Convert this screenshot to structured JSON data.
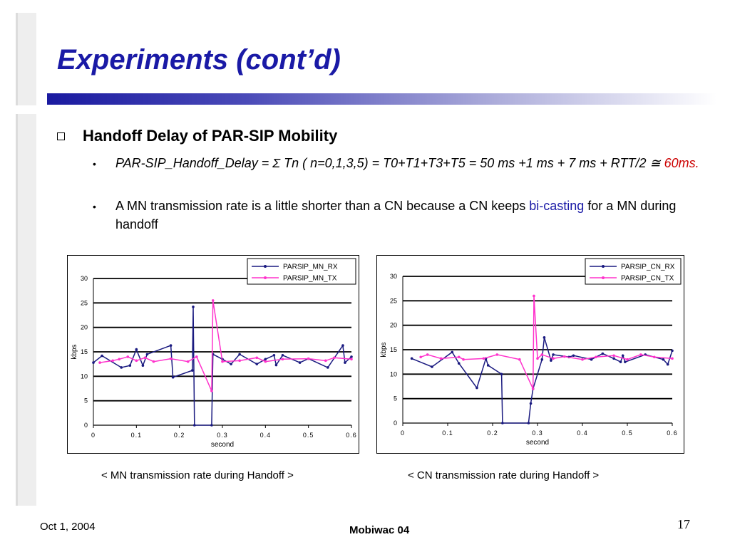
{
  "slide": {
    "title": "Experiments (cont’d)",
    "heading": "Handoff Delay of PAR-SIP Mobility",
    "bullet1": {
      "part1": "PAR-SIP_Handoff_Delay = ",
      "sigma": "Σ",
      "part2": " Tn ( n=0,1,3,5) = T0+T1+T3+T5 = 50 ms +1 ms + 7 ms + RTT/2 ",
      "approx": "≅",
      "red_value": "60ms."
    },
    "bullet2": {
      "part1": "A MN transmission rate is a little shorter than a CN because a CN keeps ",
      "blue_text": "bi-casting",
      "part2": " for a MN during handoff"
    },
    "caption_mn": "< MN transmission rate during Handoff >",
    "caption_cn": "< CN transmission rate during Handoff >",
    "footer_date": "Oct 1, 2004",
    "footer_center": "Mobiwac 04",
    "page_number": "17"
  },
  "colors": {
    "title": "#1a1aa6",
    "rx_series": "#1a1a80",
    "tx_series": "#ff33cc",
    "highlight_red": "#cc0000"
  },
  "chart_data": [
    {
      "type": "line",
      "xlabel": "second",
      "ylabel": "kbps",
      "xlim": [
        0,
        0.6
      ],
      "ylim": [
        0,
        30
      ],
      "x_ticks": [
        "0",
        "0.1",
        "0.2",
        "0.3",
        "0.4",
        "0.5",
        "0.6"
      ],
      "y_ticks": [
        "0",
        "5",
        "10",
        "15",
        "20",
        "25",
        "30"
      ],
      "grid": "horizontal",
      "legend": "top-right",
      "series": [
        {
          "name": "PARSIP_MN_RX",
          "x": [
            0,
            0.02,
            0.065,
            0.085,
            0.1,
            0.115,
            0.125,
            0.18,
            0.185,
            0.23,
            0.232,
            0.235,
            0.275,
            0.278,
            0.3,
            0.32,
            0.34,
            0.38,
            0.4,
            0.42,
            0.425,
            0.44,
            0.48,
            0.5,
            0.545,
            0.58,
            0.585,
            0.6
          ],
          "y": [
            12.8,
            14.2,
            11.8,
            12.2,
            15.5,
            12.2,
            14.5,
            16.3,
            9.8,
            11.2,
            24.2,
            0,
            0,
            14.5,
            13.5,
            12.5,
            14.5,
            12.5,
            13.5,
            14.3,
            12.3,
            14.3,
            12.8,
            13.6,
            11.8,
            16.3,
            12.8,
            14.0
          ]
        },
        {
          "name": "PARSIP_MN_TX",
          "x": [
            0.015,
            0.045,
            0.06,
            0.08,
            0.1,
            0.12,
            0.14,
            0.18,
            0.22,
            0.24,
            0.275,
            0.278,
            0.3,
            0.34,
            0.38,
            0.4,
            0.44,
            0.5,
            0.54,
            0.56,
            0.6
          ],
          "y": [
            12.8,
            13.2,
            13.5,
            14.0,
            13.2,
            13.8,
            13.0,
            13.6,
            13.0,
            14.0,
            7.0,
            25.5,
            13.0,
            13.2,
            13.8,
            13.0,
            13.5,
            13.6,
            13.2,
            13.8,
            13.5
          ]
        }
      ]
    },
    {
      "type": "line",
      "xlabel": "second",
      "ylabel": "kbps",
      "xlim": [
        0,
        0.6
      ],
      "ylim": [
        0,
        30
      ],
      "x_ticks": [
        "0",
        "0.1",
        "0.2",
        "0.3",
        "0.4",
        "0.5",
        "0.6"
      ],
      "y_ticks": [
        "0",
        "5",
        "10",
        "15",
        "20",
        "25",
        "30"
      ],
      "grid": "horizontal",
      "legend": "top-right",
      "series": [
        {
          "name": "PARSIP_CN_RX",
          "x": [
            0.02,
            0.065,
            0.11,
            0.125,
            0.165,
            0.185,
            0.19,
            0.22,
            0.222,
            0.28,
            0.285,
            0.29,
            0.31,
            0.315,
            0.33,
            0.335,
            0.37,
            0.38,
            0.42,
            0.445,
            0.47,
            0.485,
            0.49,
            0.495,
            0.54,
            0.58,
            0.59,
            0.6
          ],
          "y": [
            13.2,
            11.5,
            14.5,
            12.2,
            7.2,
            13.2,
            11.8,
            10.0,
            0,
            0,
            4.0,
            7.0,
            13.0,
            17.5,
            12.8,
            14.0,
            13.5,
            13.8,
            13.0,
            14.2,
            13.2,
            12.5,
            13.8,
            12.5,
            14.0,
            13.0,
            12.0,
            14.8
          ]
        },
        {
          "name": "PARSIP_CN_TX",
          "x": [
            0.04,
            0.055,
            0.085,
            0.125,
            0.135,
            0.18,
            0.21,
            0.26,
            0.29,
            0.292,
            0.3,
            0.31,
            0.335,
            0.36,
            0.4,
            0.43,
            0.47,
            0.5,
            0.53,
            0.56,
            0.6
          ],
          "y": [
            13.5,
            14.0,
            13.2,
            13.5,
            13.0,
            13.2,
            14.0,
            13.0,
            7.0,
            26.0,
            13.2,
            14.0,
            13.2,
            13.6,
            13.0,
            13.5,
            13.8,
            13.0,
            14.0,
            13.5,
            13.2
          ]
        }
      ]
    }
  ]
}
